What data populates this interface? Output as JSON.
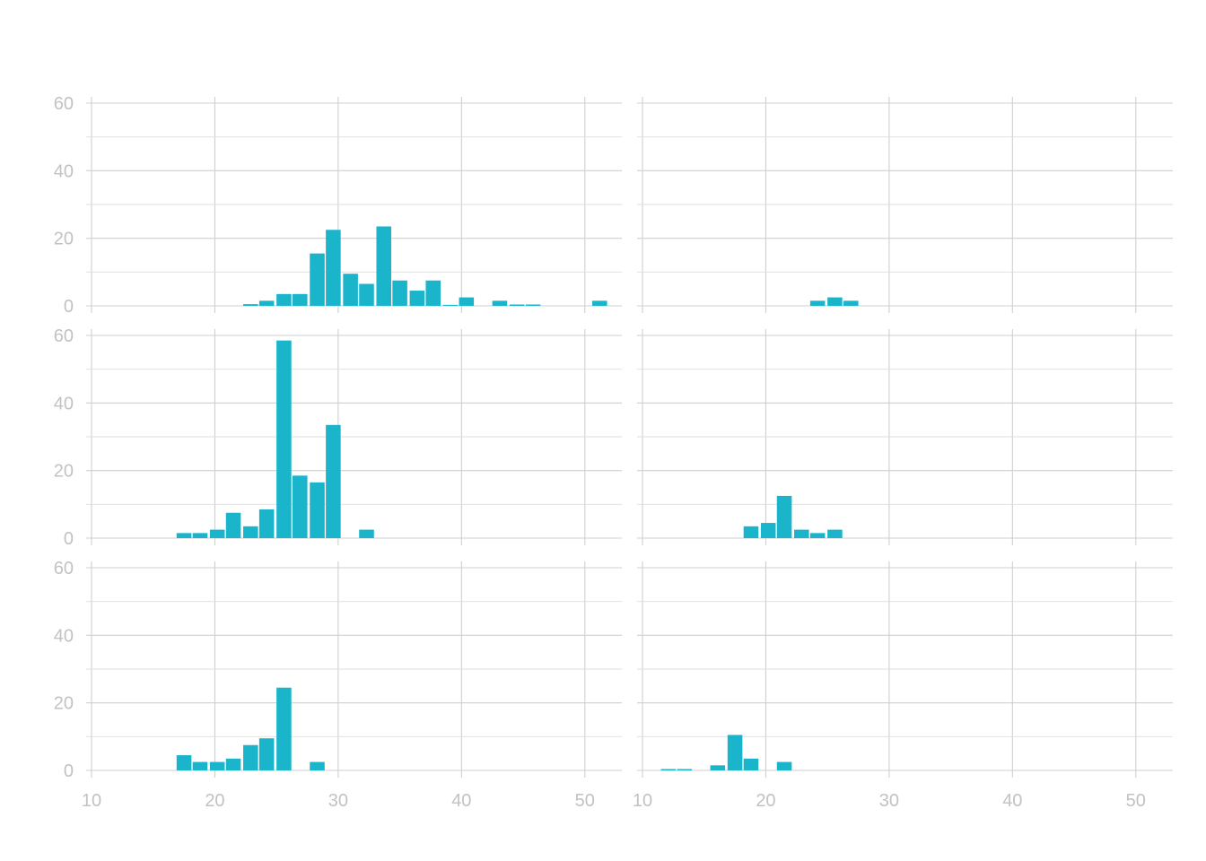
{
  "chart_data": {
    "type": "bar",
    "layout": "facet-grid-3x2",
    "bar_color": "#1bb5cb",
    "grid_color": "#cfcfcf",
    "tick_color": "#c2c2c2",
    "xlim": [
      10,
      53
    ],
    "ylim": [
      0,
      60
    ],
    "x_major_ticks": [
      10,
      20,
      30,
      40,
      50
    ],
    "y_major_ticks": [
      0,
      20,
      40,
      60
    ],
    "y_tick_labels": [
      "0",
      "20",
      "40",
      "60"
    ],
    "x_tick_labels": [
      "10",
      "20",
      "30",
      "40",
      "50"
    ],
    "bin_width": 1.35,
    "panels": [
      {
        "bins": [
          {
            "x": 22.9,
            "count": 0.5
          },
          {
            "x": 24.2,
            "count": 1.5
          },
          {
            "x": 25.6,
            "count": 3.5
          },
          {
            "x": 26.9,
            "count": 3.5
          },
          {
            "x": 28.3,
            "count": 15.5
          },
          {
            "x": 29.6,
            "count": 22.5
          },
          {
            "x": 31.0,
            "count": 9.5
          },
          {
            "x": 32.3,
            "count": 6.5
          },
          {
            "x": 33.7,
            "count": 23.5
          },
          {
            "x": 35.0,
            "count": 7.5
          },
          {
            "x": 36.4,
            "count": 4.5
          },
          {
            "x": 37.7,
            "count": 7.5
          },
          {
            "x": 39.1,
            "count": 0.3
          },
          {
            "x": 40.4,
            "count": 2.5
          },
          {
            "x": 43.1,
            "count": 1.5
          },
          {
            "x": 44.5,
            "count": 0.4
          },
          {
            "x": 45.8,
            "count": 0.4
          },
          {
            "x": 51.2,
            "count": 1.5
          }
        ]
      },
      {
        "bins": [
          {
            "x": 24.2,
            "count": 1.5
          },
          {
            "x": 25.6,
            "count": 2.5
          },
          {
            "x": 26.9,
            "count": 1.5
          }
        ]
      },
      {
        "bins": [
          {
            "x": 17.5,
            "count": 1.5
          },
          {
            "x": 18.8,
            "count": 1.5
          },
          {
            "x": 20.2,
            "count": 2.5
          },
          {
            "x": 21.5,
            "count": 7.5
          },
          {
            "x": 22.9,
            "count": 3.5
          },
          {
            "x": 24.2,
            "count": 8.5
          },
          {
            "x": 25.6,
            "count": 58.5
          },
          {
            "x": 26.9,
            "count": 18.5
          },
          {
            "x": 28.3,
            "count": 16.5
          },
          {
            "x": 29.6,
            "count": 33.5
          },
          {
            "x": 32.3,
            "count": 2.5
          }
        ]
      },
      {
        "bins": [
          {
            "x": 18.8,
            "count": 3.5
          },
          {
            "x": 20.2,
            "count": 4.5
          },
          {
            "x": 21.5,
            "count": 12.5
          },
          {
            "x": 22.9,
            "count": 2.5
          },
          {
            "x": 24.2,
            "count": 1.5
          },
          {
            "x": 25.6,
            "count": 2.5
          }
        ]
      },
      {
        "bins": [
          {
            "x": 17.5,
            "count": 4.5
          },
          {
            "x": 18.8,
            "count": 2.5
          },
          {
            "x": 20.2,
            "count": 2.5
          },
          {
            "x": 21.5,
            "count": 3.5
          },
          {
            "x": 22.9,
            "count": 7.5
          },
          {
            "x": 24.2,
            "count": 9.5
          },
          {
            "x": 25.6,
            "count": 24.5
          },
          {
            "x": 28.3,
            "count": 2.5
          }
        ]
      },
      {
        "bins": [
          {
            "x": 12.1,
            "count": 0.4
          },
          {
            "x": 13.4,
            "count": 0.4
          },
          {
            "x": 16.1,
            "count": 1.5
          },
          {
            "x": 17.5,
            "count": 10.5
          },
          {
            "x": 18.8,
            "count": 3.5
          },
          {
            "x": 21.5,
            "count": 2.5
          }
        ]
      }
    ]
  }
}
